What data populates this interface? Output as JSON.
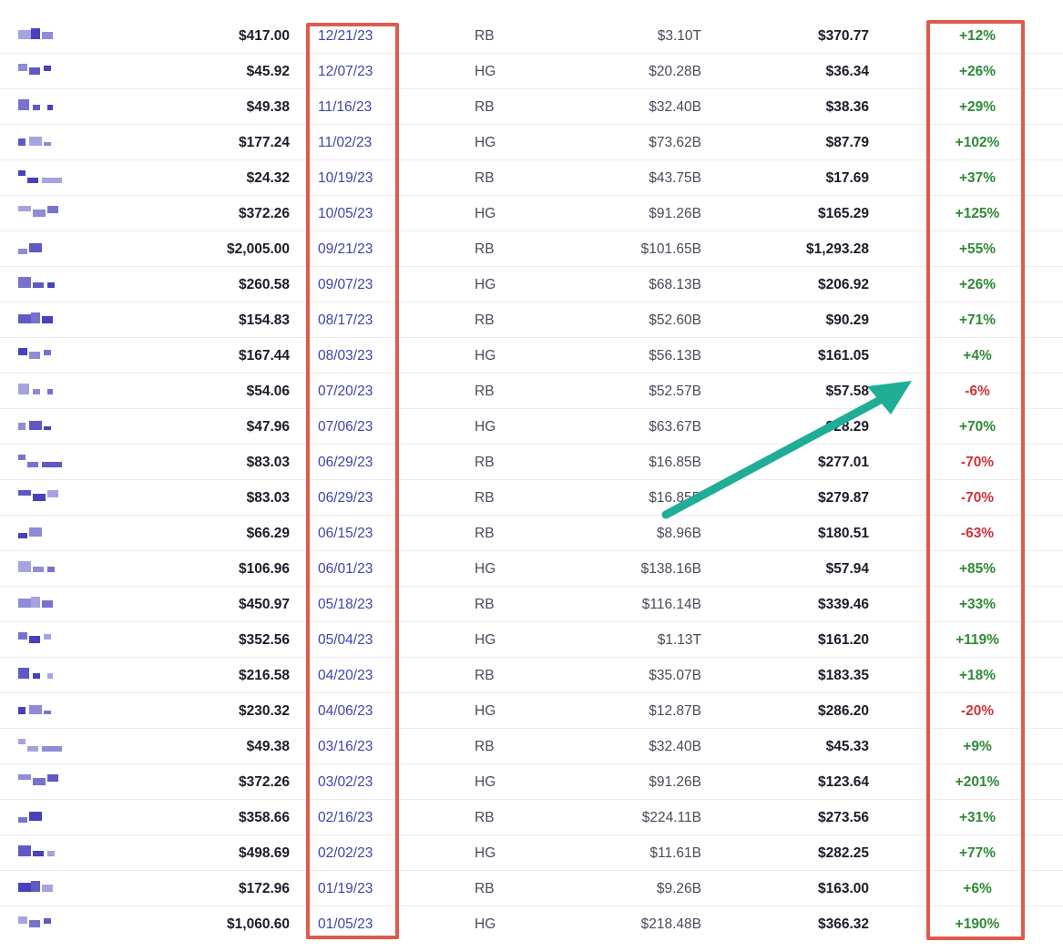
{
  "colors": {
    "positive": "#2e8a36",
    "negative": "#d0323a",
    "date": "#3e44a8",
    "highlight": "#e05a4c",
    "arrow": "#1fae95",
    "ticker_pixel": "#3a33b8"
  },
  "rows": [
    {
      "price": "$417.00",
      "date": "12/21/23",
      "grade": "RB",
      "mcap": "$3.10T",
      "target": "$370.77",
      "ret": "+12%",
      "dir": "pos"
    },
    {
      "price": "$45.92",
      "date": "12/07/23",
      "grade": "HG",
      "mcap": "$20.28B",
      "target": "$36.34",
      "ret": "+26%",
      "dir": "pos"
    },
    {
      "price": "$49.38",
      "date": "11/16/23",
      "grade": "RB",
      "mcap": "$32.40B",
      "target": "$38.36",
      "ret": "+29%",
      "dir": "pos"
    },
    {
      "price": "$177.24",
      "date": "11/02/23",
      "grade": "HG",
      "mcap": "$73.62B",
      "target": "$87.79",
      "ret": "+102%",
      "dir": "pos"
    },
    {
      "price": "$24.32",
      "date": "10/19/23",
      "grade": "RB",
      "mcap": "$43.75B",
      "target": "$17.69",
      "ret": "+37%",
      "dir": "pos"
    },
    {
      "price": "$372.26",
      "date": "10/05/23",
      "grade": "HG",
      "mcap": "$91.26B",
      "target": "$165.29",
      "ret": "+125%",
      "dir": "pos"
    },
    {
      "price": "$2,005.00",
      "date": "09/21/23",
      "grade": "RB",
      "mcap": "$101.65B",
      "target": "$1,293.28",
      "ret": "+55%",
      "dir": "pos"
    },
    {
      "price": "$260.58",
      "date": "09/07/23",
      "grade": "HG",
      "mcap": "$68.13B",
      "target": "$206.92",
      "ret": "+26%",
      "dir": "pos"
    },
    {
      "price": "$154.83",
      "date": "08/17/23",
      "grade": "RB",
      "mcap": "$52.60B",
      "target": "$90.29",
      "ret": "+71%",
      "dir": "pos"
    },
    {
      "price": "$167.44",
      "date": "08/03/23",
      "grade": "HG",
      "mcap": "$56.13B",
      "target": "$161.05",
      "ret": "+4%",
      "dir": "pos"
    },
    {
      "price": "$54.06",
      "date": "07/20/23",
      "grade": "RB",
      "mcap": "$52.57B",
      "target": "$57.58",
      "ret": "-6%",
      "dir": "neg"
    },
    {
      "price": "$47.96",
      "date": "07/06/23",
      "grade": "HG",
      "mcap": "$63.67B",
      "target": "$28.29",
      "ret": "+70%",
      "dir": "pos"
    },
    {
      "price": "$83.03",
      "date": "06/29/23",
      "grade": "RB",
      "mcap": "$16.85B",
      "target": "$277.01",
      "ret": "-70%",
      "dir": "neg"
    },
    {
      "price": "$83.03",
      "date": "06/29/23",
      "grade": "RB",
      "mcap": "$16.85B",
      "target": "$279.87",
      "ret": "-70%",
      "dir": "neg"
    },
    {
      "price": "$66.29",
      "date": "06/15/23",
      "grade": "RB",
      "mcap": "$8.96B",
      "target": "$180.51",
      "ret": "-63%",
      "dir": "neg"
    },
    {
      "price": "$106.96",
      "date": "06/01/23",
      "grade": "HG",
      "mcap": "$138.16B",
      "target": "$57.94",
      "ret": "+85%",
      "dir": "pos"
    },
    {
      "price": "$450.97",
      "date": "05/18/23",
      "grade": "RB",
      "mcap": "$116.14B",
      "target": "$339.46",
      "ret": "+33%",
      "dir": "pos"
    },
    {
      "price": "$352.56",
      "date": "05/04/23",
      "grade": "HG",
      "mcap": "$1.13T",
      "target": "$161.20",
      "ret": "+119%",
      "dir": "pos"
    },
    {
      "price": "$216.58",
      "date": "04/20/23",
      "grade": "RB",
      "mcap": "$35.07B",
      "target": "$183.35",
      "ret": "+18%",
      "dir": "pos"
    },
    {
      "price": "$230.32",
      "date": "04/06/23",
      "grade": "HG",
      "mcap": "$12.87B",
      "target": "$286.20",
      "ret": "-20%",
      "dir": "neg"
    },
    {
      "price": "$49.38",
      "date": "03/16/23",
      "grade": "RB",
      "mcap": "$32.40B",
      "target": "$45.33",
      "ret": "+9%",
      "dir": "pos"
    },
    {
      "price": "$372.26",
      "date": "03/02/23",
      "grade": "HG",
      "mcap": "$91.26B",
      "target": "$123.64",
      "ret": "+201%",
      "dir": "pos"
    },
    {
      "price": "$358.66",
      "date": "02/16/23",
      "grade": "RB",
      "mcap": "$224.11B",
      "target": "$273.56",
      "ret": "+31%",
      "dir": "pos"
    },
    {
      "price": "$498.69",
      "date": "02/02/23",
      "grade": "HG",
      "mcap": "$11.61B",
      "target": "$282.25",
      "ret": "+77%",
      "dir": "pos"
    },
    {
      "price": "$172.96",
      "date": "01/19/23",
      "grade": "RB",
      "mcap": "$9.26B",
      "target": "$163.00",
      "ret": "+6%",
      "dir": "pos"
    },
    {
      "price": "$1,060.60",
      "date": "01/05/23",
      "grade": "HG",
      "mcap": "$218.48B",
      "target": "$366.32",
      "ret": "+190%",
      "dir": "pos"
    }
  ]
}
